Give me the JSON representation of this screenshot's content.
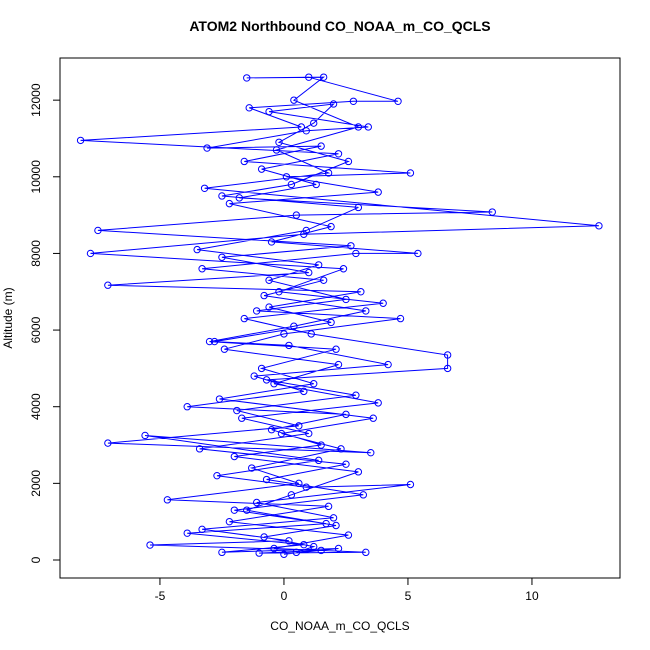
{
  "chart_data": {
    "type": "line",
    "title": "ATOM2 Northbound CO_NOAA_m_CO_QCLS",
    "x_label": "CO_NOAA_m_CO_QCLS",
    "y_label": "Altitude (m)",
    "color": "#0000ff",
    "markers": "open-circle",
    "grid": false,
    "xlim": [
      -9.03,
      13.55
    ],
    "ylim": [
      -470,
      13100
    ],
    "xticks": [
      -5,
      0,
      5,
      10
    ],
    "yticks": [
      0,
      2000,
      4000,
      6000,
      8000,
      10000,
      12000
    ],
    "x": [
      0.5,
      1.2,
      -0.8,
      2.1,
      -1.5,
      0.3,
      3.0,
      -2.0,
      1.5,
      -0.5,
      2.5,
      -3.9,
      0.8,
      -1.2,
      4.2,
      0.2,
      -2.8,
      1.9,
      -0.6,
      3.1,
      -7.1,
      1.0,
      -2.5,
      2.7,
      -7.5,
      0.5,
      8.4,
      -1.8,
      1.3,
      -0.9,
      2.2,
      -8.2,
      0.7,
      -1.4,
      2.8,
      4.6,
      1.0,
      -1.5,
      1.6,
      0.4,
      3.0,
      -0.3,
      1.8,
      -3.2,
      12.7,
      0.8,
      -7.8,
      2.4,
      -0.2,
      4.0,
      -1.6,
      1.1,
      6.6,
      6.6,
      -0.7,
      2.9,
      -1.9,
      0.6,
      -7.1,
      3.5,
      -5.6,
      1.4,
      -2.7,
      0.9,
      5.1,
      -1.1,
      2.0,
      -3.3,
      0.2,
      -5.4,
      1.5,
      -1.0,
      3.3,
      -0.4,
      2.6,
      -2.2,
      1.8,
      -4.7,
      0.6,
      -1.3,
      2.3,
      -0.1,
      3.6,
      -2.6,
      1.2,
      -0.9,
      2.1,
      -3.0,
      0.4,
      3.3,
      -0.8,
      1.6,
      -3.3,
      2.9,
      5.4,
      -0.5,
      1.9,
      -2.2,
      3.8,
      0.1,
      5.1,
      -1.6,
      1.5,
      -3.1,
      0.9,
      3.4,
      -0.6,
      2.0,
      1.2,
      -0.2,
      2.6,
      0.3,
      -2.5,
      3.0,
      0.9,
      -3.5,
      1.4,
      -0.6,
      2.5,
      -1.1,
      4.7,
      0.0,
      -2.4,
      2.2,
      -0.4,
      3.8,
      -1.7,
      1.0,
      -3.4,
      2.5,
      -0.7,
      3.2,
      -2.0,
      1.7,
      -3.9,
      0.8,
      -2.5,
      2.2,
      0.0
    ],
    "values": [
      200,
      350,
      600,
      900,
      1300,
      1700,
      2300,
      2700,
      3000,
      3400,
      3800,
      4000,
      4400,
      4800,
      5100,
      5600,
      5700,
      6200,
      6600,
      7000,
      7170,
      7500,
      7900,
      8200,
      8600,
      9000,
      9080,
      9450,
      9800,
      10200,
      10600,
      10950,
      11300,
      11800,
      11970,
      11970,
      12600,
      12580,
      12600,
      12000,
      11300,
      10700,
      10100,
      9700,
      8720,
      8500,
      8000,
      7600,
      7000,
      6700,
      6300,
      5900,
      5350,
      5000,
      4700,
      4300,
      3900,
      3500,
      3050,
      2800,
      3250,
      2600,
      2200,
      1900,
      1970,
      1500,
      1100,
      800,
      500,
      390,
      250,
      180,
      200,
      300,
      650,
      1000,
      1400,
      1570,
      2000,
      2400,
      2900,
      3300,
      3700,
      4200,
      4600,
      5000,
      5500,
      5700,
      6100,
      6500,
      6900,
      7300,
      7600,
      8000,
      8000,
      8300,
      8700,
      9300,
      9600,
      10000,
      10100,
      10400,
      10800,
      10750,
      11200,
      11300,
      11700,
      11900,
      11400,
      10900,
      10400,
      9800,
      9500,
      9200,
      8600,
      8100,
      7700,
      7300,
      6800,
      6500,
      6300,
      5900,
      5500,
      5100,
      4600,
      4100,
      3700,
      3300,
      2900,
      2500,
      2100,
      1700,
      1300,
      950,
      700,
      400,
      200,
      300,
      150
    ]
  }
}
